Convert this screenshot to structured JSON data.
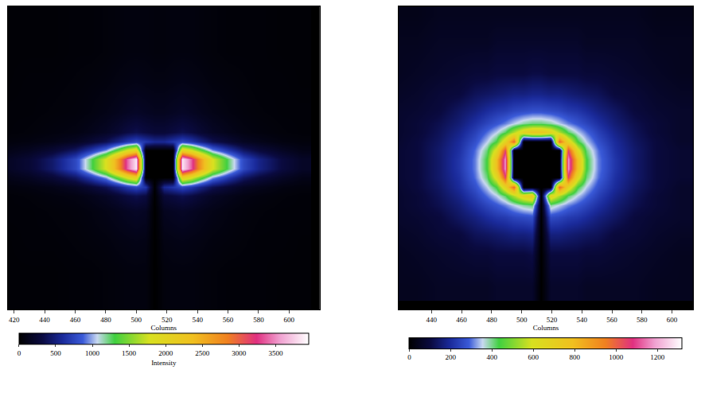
{
  "chart_data": [
    {
      "type": "heatmap",
      "x_label": "Columns",
      "x": [
        415,
        430,
        445,
        460,
        470,
        480,
        488,
        494,
        500,
        506,
        512,
        518,
        524,
        530,
        536,
        542,
        550,
        560,
        570,
        580,
        595,
        608
      ],
      "y": [
        415,
        435,
        455,
        475,
        485,
        491,
        497,
        503,
        509,
        515,
        521,
        527,
        540,
        560,
        580,
        600
      ],
      "z": [
        [
          30,
          30,
          30,
          40,
          40,
          50,
          60,
          70,
          70,
          70,
          0,
          60,
          70,
          70,
          70,
          60,
          50,
          40,
          40,
          40,
          30,
          30
        ],
        [
          30,
          30,
          30,
          40,
          40,
          50,
          60,
          70,
          70,
          70,
          0,
          60,
          70,
          70,
          70,
          60,
          50,
          40,
          40,
          40,
          30,
          30
        ],
        [
          30,
          40,
          40,
          50,
          60,
          70,
          90,
          100,
          110,
          100,
          0,
          90,
          100,
          110,
          100,
          90,
          70,
          60,
          50,
          40,
          40,
          30
        ],
        [
          40,
          40,
          50,
          60,
          80,
          110,
          140,
          170,
          190,
          170,
          0,
          150,
          170,
          190,
          170,
          140,
          110,
          80,
          60,
          50,
          40,
          40
        ],
        [
          40,
          50,
          70,
          90,
          130,
          180,
          250,
          320,
          360,
          310,
          0,
          270,
          310,
          360,
          320,
          250,
          180,
          130,
          90,
          70,
          50,
          40
        ],
        [
          60,
          80,
          110,
          170,
          260,
          370,
          530,
          680,
          770,
          660,
          0,
          570,
          660,
          770,
          680,
          530,
          370,
          260,
          170,
          130,
          80,
          60
        ],
        [
          110,
          160,
          260,
          430,
          680,
          980,
          1430,
          1830,
          2080,
          0,
          0,
          0,
          0,
          2080,
          1830,
          1430,
          980,
          680,
          430,
          300,
          180,
          110
        ],
        [
          170,
          260,
          450,
          770,
          1240,
          1800,
          2630,
          3380,
          3840,
          0,
          0,
          0,
          0,
          3840,
          3380,
          2630,
          1800,
          1240,
          770,
          540,
          310,
          190
        ],
        [
          170,
          260,
          450,
          770,
          1240,
          1800,
          2630,
          3380,
          3840,
          0,
          0,
          0,
          0,
          3840,
          3380,
          2630,
          1800,
          1240,
          770,
          540,
          310,
          190
        ],
        [
          110,
          160,
          260,
          430,
          680,
          980,
          1430,
          1830,
          2080,
          0,
          0,
          0,
          0,
          2080,
          1830,
          1430,
          980,
          680,
          430,
          300,
          180,
          110
        ],
        [
          60,
          80,
          110,
          170,
          260,
          370,
          530,
          680,
          770,
          660,
          570,
          570,
          660,
          770,
          680,
          530,
          370,
          260,
          170,
          130,
          80,
          60
        ],
        [
          40,
          50,
          70,
          90,
          130,
          180,
          250,
          320,
          360,
          310,
          270,
          270,
          310,
          360,
          320,
          250,
          180,
          130,
          90,
          70,
          50,
          40
        ],
        [
          40,
          40,
          50,
          60,
          80,
          110,
          140,
          170,
          190,
          170,
          150,
          150,
          170,
          190,
          170,
          140,
          110,
          80,
          60,
          50,
          40,
          40
        ],
        [
          30,
          40,
          40,
          50,
          60,
          70,
          90,
          100,
          110,
          100,
          90,
          90,
          100,
          110,
          100,
          90,
          70,
          60,
          50,
          40,
          40,
          30
        ],
        [
          30,
          30,
          30,
          40,
          40,
          50,
          60,
          70,
          70,
          70,
          60,
          60,
          70,
          70,
          70,
          60,
          50,
          40,
          40,
          40,
          30,
          30
        ],
        [
          30,
          30,
          30,
          40,
          40,
          50,
          60,
          70,
          70,
          70,
          60,
          60,
          70,
          70,
          70,
          60,
          50,
          40,
          40,
          40,
          30,
          30
        ]
      ],
      "xlim": [
        416,
        620
      ],
      "xticks": [
        420,
        440,
        460,
        480,
        500,
        520,
        540,
        560,
        580,
        600
      ],
      "ylim": [
        410,
        610
      ],
      "tick_labels": "x",
      "zlim": [
        0,
        3950
      ],
      "zticks": [
        0,
        500,
        1000,
        1500,
        2000,
        2500,
        3000,
        3500
      ],
      "colorbar_title": "Intensity"
    },
    {
      "type": "heatmap",
      "x_label": "Columns",
      "x": [
        414,
        430,
        445,
        458,
        469,
        477,
        483,
        489,
        495,
        501,
        507,
        513,
        519,
        525,
        531,
        537,
        543,
        551,
        562,
        575,
        590,
        606
      ],
      "y": [
        426,
        446,
        460,
        471,
        479,
        485,
        491,
        497,
        503,
        509,
        515,
        521,
        527,
        533,
        541,
        552,
        566,
        586,
        604
      ],
      "z": [
        [
          50,
          50,
          60,
          60,
          60,
          60,
          70,
          70,
          70,
          70,
          70,
          0,
          70,
          70,
          70,
          70,
          60,
          60,
          60,
          60,
          50,
          50
        ],
        [
          50,
          60,
          70,
          80,
          90,
          90,
          100,
          100,
          100,
          100,
          110,
          0,
          100,
          100,
          100,
          100,
          90,
          90,
          80,
          70,
          60,
          50
        ],
        [
          60,
          70,
          90,
          100,
          130,
          140,
          150,
          160,
          170,
          170,
          180,
          0,
          170,
          170,
          160,
          150,
          140,
          130,
          100,
          90,
          70,
          60
        ],
        [
          70,
          80,
          100,
          140,
          170,
          200,
          220,
          230,
          250,
          260,
          270,
          0,
          260,
          250,
          230,
          220,
          200,
          170,
          140,
          100,
          80,
          70
        ],
        [
          70,
          90,
          120,
          160,
          210,
          250,
          280,
          310,
          350,
          390,
          410,
          0,
          390,
          350,
          310,
          280,
          250,
          210,
          160,
          120,
          90,
          70
        ],
        [
          70,
          90,
          130,
          180,
          240,
          300,
          350,
          420,
          550,
          680,
          750,
          0,
          680,
          550,
          420,
          350,
          300,
          240,
          180,
          130,
          90,
          70
        ],
        [
          70,
          100,
          140,
          200,
          270,
          350,
          440,
          680,
          1000,
          0,
          0,
          0,
          0,
          1000,
          680,
          440,
          350,
          270,
          200,
          140,
          100,
          70
        ],
        [
          80,
          100,
          150,
          210,
          300,
          410,
          640,
          1050,
          0,
          0,
          0,
          0,
          0,
          0,
          1050,
          640,
          410,
          300,
          210,
          150,
          100,
          80
        ],
        [
          80,
          100,
          150,
          220,
          310,
          440,
          780,
          1180,
          0,
          0,
          0,
          0,
          0,
          0,
          1180,
          780,
          440,
          310,
          220,
          150,
          100,
          80
        ],
        [
          80,
          100,
          150,
          220,
          310,
          440,
          780,
          1180,
          0,
          0,
          0,
          0,
          0,
          0,
          1180,
          780,
          440,
          310,
          220,
          150,
          100,
          80
        ],
        [
          80,
          100,
          150,
          210,
          300,
          410,
          640,
          1050,
          0,
          0,
          0,
          0,
          0,
          0,
          1050,
          640,
          410,
          300,
          210,
          150,
          100,
          80
        ],
        [
          70,
          100,
          140,
          200,
          270,
          350,
          440,
          680,
          1000,
          0,
          0,
          0,
          0,
          1000,
          680,
          440,
          350,
          270,
          200,
          140,
          100,
          70
        ],
        [
          70,
          90,
          130,
          180,
          240,
          300,
          350,
          420,
          550,
          680,
          750,
          750,
          680,
          550,
          420,
          350,
          300,
          240,
          180,
          130,
          90,
          70
        ],
        [
          70,
          90,
          120,
          160,
          210,
          250,
          280,
          310,
          350,
          390,
          410,
          410,
          390,
          350,
          310,
          280,
          250,
          210,
          160,
          120,
          90,
          70
        ],
        [
          70,
          80,
          100,
          140,
          170,
          200,
          220,
          230,
          250,
          260,
          270,
          270,
          260,
          250,
          230,
          220,
          200,
          170,
          140,
          100,
          80,
          70
        ],
        [
          60,
          70,
          90,
          100,
          130,
          140,
          150,
          160,
          170,
          170,
          180,
          180,
          170,
          170,
          160,
          150,
          140,
          130,
          100,
          90,
          70,
          60
        ],
        [
          50,
          60,
          70,
          80,
          90,
          90,
          100,
          100,
          100,
          100,
          110,
          110,
          100,
          100,
          100,
          100,
          90,
          90,
          80,
          70,
          60,
          50
        ],
        [
          50,
          50,
          60,
          60,
          60,
          60,
          70,
          70,
          70,
          70,
          70,
          70,
          70,
          70,
          70,
          70,
          60,
          60,
          60,
          60,
          50,
          50
        ],
        [
          40,
          40,
          50,
          50,
          50,
          50,
          50,
          50,
          50,
          50,
          50,
          50,
          50,
          50,
          50,
          50,
          50,
          50,
          50,
          50,
          40,
          40
        ]
      ],
      "xlim": [
        418,
        614
      ],
      "xticks": [
        440,
        460,
        480,
        500,
        520,
        540,
        560,
        580,
        600
      ],
      "ylim": [
        410,
        610
      ],
      "tick_labels": "x",
      "zlim": [
        0,
        1320
      ],
      "zticks": [
        0,
        200,
        400,
        600,
        800,
        1000,
        1200
      ]
    }
  ]
}
